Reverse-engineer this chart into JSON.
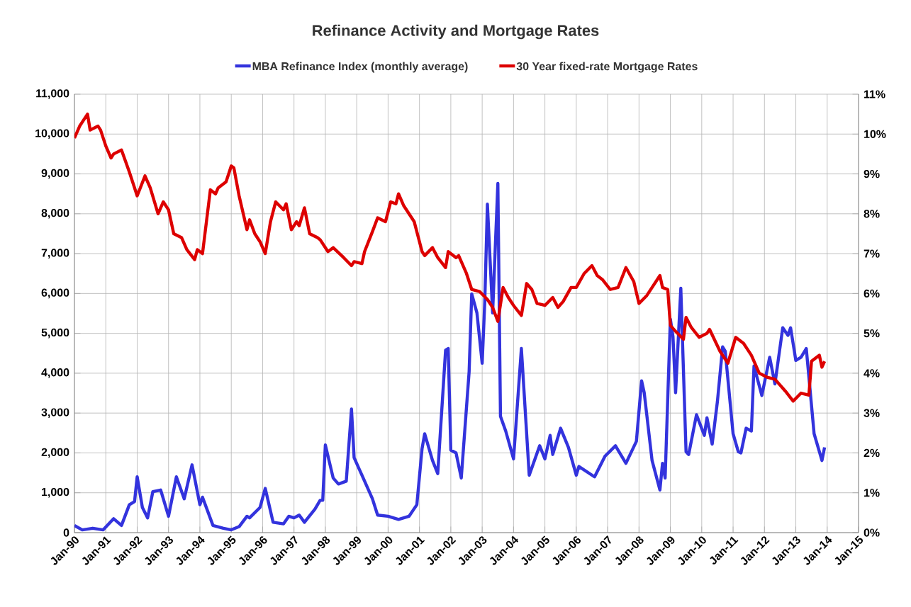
{
  "chart_data": {
    "type": "line",
    "title": "Refinance Activity and Mortgage Rates",
    "xlim": [
      "1990-01",
      "2015-01"
    ],
    "xticks": [
      {
        "value": "1990-01",
        "label": "Jan-90"
      },
      {
        "value": "1991-01",
        "label": "Jan-91"
      },
      {
        "value": "1992-01",
        "label": "Jan-92"
      },
      {
        "value": "1993-01",
        "label": "Jan-93"
      },
      {
        "value": "1994-01",
        "label": "Jan-94"
      },
      {
        "value": "1995-01",
        "label": "Jan-95"
      },
      {
        "value": "1996-01",
        "label": "Jan-96"
      },
      {
        "value": "1997-01",
        "label": "Jan-97"
      },
      {
        "value": "1998-01",
        "label": "Jan-98"
      },
      {
        "value": "1999-01",
        "label": "Jan-99"
      },
      {
        "value": "2000-01",
        "label": "Jan-00"
      },
      {
        "value": "2001-01",
        "label": "Jan-01"
      },
      {
        "value": "2002-01",
        "label": "Jan-02"
      },
      {
        "value": "2003-01",
        "label": "Jan-03"
      },
      {
        "value": "2004-01",
        "label": "Jan-04"
      },
      {
        "value": "2005-01",
        "label": "Jan-05"
      },
      {
        "value": "2006-01",
        "label": "Jan-06"
      },
      {
        "value": "2007-01",
        "label": "Jan-07"
      },
      {
        "value": "2008-01",
        "label": "Jan-08"
      },
      {
        "value": "2009-01",
        "label": "Jan-09"
      },
      {
        "value": "2010-01",
        "label": "Jan-10"
      },
      {
        "value": "2011-01",
        "label": "Jan-11"
      },
      {
        "value": "2012-01",
        "label": "Jan-12"
      },
      {
        "value": "2013-01",
        "label": "Jan-13"
      },
      {
        "value": "2014-01",
        "label": "Jan-14"
      },
      {
        "value": "2015-01",
        "label": "Jan-15"
      }
    ],
    "ylim": [
      0,
      11000
    ],
    "yticks": [
      0,
      {
        "value": 1000,
        "label": "1,000"
      },
      {
        "value": 2000,
        "label": "2,000"
      },
      {
        "value": 3000,
        "label": "3,000"
      },
      {
        "value": 4000,
        "label": "4,000"
      },
      {
        "value": 5000,
        "label": "5,000"
      },
      {
        "value": 6000,
        "label": "6,000"
      },
      {
        "value": 7000,
        "label": "7,000"
      },
      {
        "value": 8000,
        "label": "8,000"
      },
      {
        "value": 9000,
        "label": "9,000"
      },
      {
        "value": 10000,
        "label": "10,000"
      },
      {
        "value": 11000,
        "label": "11,000"
      }
    ],
    "y2lim": [
      0,
      11
    ],
    "y2ticks": [
      {
        "value": 0,
        "label": "0%"
      },
      {
        "value": 1,
        "label": "1%"
      },
      {
        "value": 2,
        "label": "2%"
      },
      {
        "value": 3,
        "label": "3%"
      },
      {
        "value": 4,
        "label": "4%"
      },
      {
        "value": 5,
        "label": "5%"
      },
      {
        "value": 6,
        "label": "6%"
      },
      {
        "value": 7,
        "label": "7%"
      },
      {
        "value": 8,
        "label": "8%"
      },
      {
        "value": 9,
        "label": "9%"
      },
      {
        "value": 10,
        "label": "10%"
      },
      {
        "value": 11,
        "label": "11%"
      }
    ],
    "grid": true,
    "legend": "top",
    "series": [
      {
        "name": "MBA Refinance Index (monthly average)",
        "color": "#3333dd",
        "x": [
          "1990-01",
          "1990-04",
          "1990-08",
          "1990-12",
          "1991-04",
          "1991-07",
          "1991-10",
          "1991-12",
          "1992-01",
          "1992-03",
          "1992-05",
          "1992-07",
          "1992-10",
          "1993-01",
          "1993-04",
          "1993-07",
          "1993-10",
          "1994-01",
          "1994-02",
          "1994-06",
          "1994-10",
          "1995-01",
          "1995-04",
          "1995-07",
          "1995-08",
          "1995-12",
          "1996-02",
          "1996-05",
          "1996-09",
          "1996-11",
          "1997-01",
          "1997-03",
          "1997-05",
          "1997-09",
          "1997-11",
          "1997-12",
          "1998-01",
          "1998-04",
          "1998-06",
          "1998-09",
          "1998-11",
          "1998-12",
          "1999-03",
          "1999-07",
          "1999-09",
          "2000-01",
          "2000-05",
          "2000-09",
          "2000-12",
          "2001-02",
          "2001-03",
          "2001-06",
          "2001-08",
          "2001-11",
          "2001-12",
          "2002-01",
          "2002-03",
          "2002-05",
          "2002-08",
          "2002-09",
          "2002-11",
          "2003-01",
          "2003-02",
          "2003-03",
          "2003-05",
          "2003-07",
          "2003-08",
          "2003-10",
          "2004-01",
          "2004-04",
          "2004-07",
          "2004-11",
          "2005-01",
          "2005-03",
          "2005-04",
          "2005-07",
          "2005-10",
          "2006-01",
          "2006-02",
          "2006-08",
          "2006-12",
          "2007-04",
          "2007-05",
          "2007-08",
          "2007-12",
          "2008-02",
          "2008-03",
          "2008-06",
          "2008-09",
          "2008-10",
          "2008-11",
          "2009-01",
          "2009-02",
          "2009-03",
          "2009-05",
          "2009-07",
          "2009-08",
          "2009-11",
          "2010-02",
          "2010-03",
          "2010-05",
          "2010-07",
          "2010-09",
          "2010-10",
          "2011-01",
          "2011-03",
          "2011-04",
          "2011-06",
          "2011-08",
          "2011-09",
          "2011-12",
          "2012-03",
          "2012-05",
          "2012-08",
          "2012-10",
          "2012-11",
          "2013-01",
          "2013-03",
          "2013-05",
          "2013-08",
          "2013-11",
          "2013-12"
        ],
        "values": [
          180,
          70,
          110,
          70,
          350,
          180,
          700,
          780,
          1400,
          630,
          370,
          1030,
          1070,
          410,
          1400,
          850,
          1700,
          700,
          890,
          180,
          110,
          70,
          150,
          410,
          370,
          630,
          1110,
          260,
          220,
          410,
          370,
          440,
          260,
          590,
          810,
          810,
          2200,
          1370,
          1220,
          1290,
          3100,
          1880,
          1440,
          850,
          440,
          410,
          330,
          410,
          700,
          2110,
          2480,
          1810,
          1480,
          4580,
          4620,
          2070,
          2000,
          1370,
          4030,
          5990,
          5510,
          4250,
          5800,
          8240,
          5510,
          8760,
          2920,
          2550,
          1850,
          4620,
          1440,
          2180,
          1850,
          2440,
          1960,
          2620,
          2140,
          1440,
          1660,
          1400,
          1920,
          2180,
          2070,
          1740,
          2290,
          3810,
          3510,
          1810,
          1070,
          1740,
          1370,
          5360,
          4920,
          3510,
          6130,
          2030,
          1960,
          2960,
          2440,
          2880,
          2220,
          3290,
          4660,
          4550,
          2480,
          2030,
          2000,
          2620,
          2550,
          4180,
          3440,
          4400,
          3730,
          5140,
          4950,
          5140,
          4320,
          4400,
          4620,
          2480,
          1810,
          2140
        ]
      },
      {
        "name": "30 Year fixed-rate Mortgage Rates",
        "color": "#dd0000",
        "axis": "y2",
        "x": [
          "1990-01",
          "1990-03",
          "1990-06",
          "1990-07",
          "1990-10",
          "1990-11",
          "1991-01",
          "1991-03",
          "1991-04",
          "1991-07",
          "1991-10",
          "1992-01",
          "1992-04",
          "1992-06",
          "1992-09",
          "1992-11",
          "1993-01",
          "1993-03",
          "1993-06",
          "1993-08",
          "1993-11",
          "1993-12",
          "1994-02",
          "1994-05",
          "1994-07",
          "1994-08",
          "1994-11",
          "1995-01",
          "1995-02",
          "1995-04",
          "1995-07",
          "1995-08",
          "1995-10",
          "1995-12",
          "1996-02",
          "1996-04",
          "1996-06",
          "1996-09",
          "1996-10",
          "1996-12",
          "1997-02",
          "1997-03",
          "1997-05",
          "1997-07",
          "1997-10",
          "1997-11",
          "1998-02",
          "1998-04",
          "1998-08",
          "1998-11",
          "1998-12",
          "1999-03",
          "1999-04",
          "1999-07",
          "1999-09",
          "1999-12",
          "2000-02",
          "2000-04",
          "2000-05",
          "2000-07",
          "2000-11",
          "2001-02",
          "2001-03",
          "2001-06",
          "2001-08",
          "2001-11",
          "2001-12",
          "2002-03",
          "2002-04",
          "2002-07",
          "2002-09",
          "2002-12",
          "2003-03",
          "2003-05",
          "2003-07",
          "2003-09",
          "2003-11",
          "2004-01",
          "2004-04",
          "2004-06",
          "2004-08",
          "2004-10",
          "2005-01",
          "2005-04",
          "2005-06",
          "2005-08",
          "2005-11",
          "2006-01",
          "2006-04",
          "2006-07",
          "2006-09",
          "2006-11",
          "2007-02",
          "2007-05",
          "2007-08",
          "2007-11",
          "2008-01",
          "2008-04",
          "2008-09",
          "2008-10",
          "2008-12",
          "2009-01",
          "2009-03",
          "2009-06",
          "2009-07",
          "2009-09",
          "2009-12",
          "2010-03",
          "2010-04",
          "2010-08",
          "2010-11",
          "2011-02",
          "2011-05",
          "2011-08",
          "2011-11",
          "2012-02",
          "2012-05",
          "2012-09",
          "2012-12",
          "2013-03",
          "2013-06",
          "2013-07",
          "2013-10",
          "2013-11",
          "2013-12"
        ],
        "values": [
          9.9,
          10.2,
          10.5,
          10.1,
          10.2,
          10.1,
          9.7,
          9.4,
          9.5,
          9.6,
          9.05,
          8.45,
          8.95,
          8.65,
          8.0,
          8.3,
          8.1,
          7.5,
          7.4,
          7.1,
          6.85,
          7.1,
          7.0,
          8.6,
          8.5,
          8.65,
          8.8,
          9.2,
          9.15,
          8.45,
          7.6,
          7.85,
          7.5,
          7.3,
          7.0,
          7.8,
          8.3,
          8.1,
          8.25,
          7.6,
          7.8,
          7.7,
          8.15,
          7.5,
          7.4,
          7.35,
          7.05,
          7.15,
          6.9,
          6.7,
          6.8,
          6.75,
          7.05,
          7.55,
          7.9,
          7.8,
          8.3,
          8.25,
          8.5,
          8.2,
          7.8,
          7.05,
          6.95,
          7.15,
          6.9,
          6.65,
          7.05,
          6.9,
          6.95,
          6.5,
          6.1,
          6.05,
          5.85,
          5.65,
          5.3,
          6.15,
          5.9,
          5.7,
          5.45,
          6.25,
          6.1,
          5.75,
          5.7,
          5.9,
          5.65,
          5.8,
          6.15,
          6.15,
          6.5,
          6.7,
          6.45,
          6.35,
          6.1,
          6.15,
          6.65,
          6.3,
          5.75,
          5.95,
          6.45,
          6.15,
          6.1,
          5.2,
          5.05,
          4.85,
          5.4,
          5.15,
          4.9,
          5.0,
          5.1,
          4.55,
          4.25,
          4.9,
          4.75,
          4.45,
          4.0,
          3.9,
          3.85,
          3.55,
          3.3,
          3.5,
          3.45,
          4.3,
          4.45,
          4.15,
          4.3
        ]
      }
    ]
  }
}
